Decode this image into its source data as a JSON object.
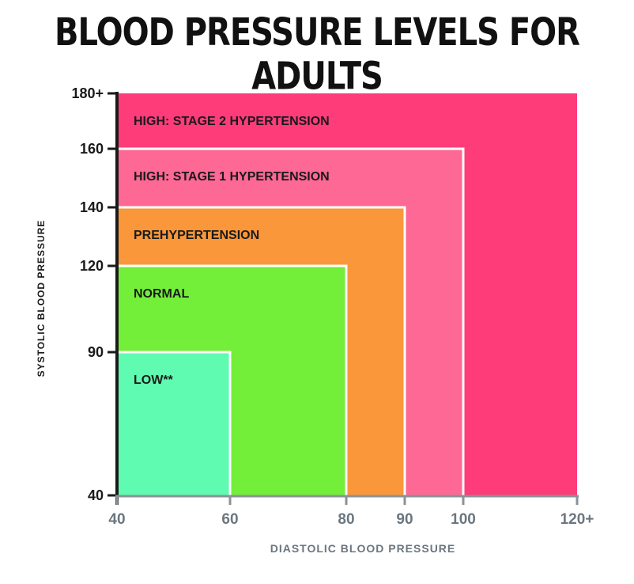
{
  "chart_data": {
    "type": "area",
    "title": "BLOOD PRESSURE LEVELS FOR ADULTS",
    "xlabel": "DIASTOLIC BLOOD PRESSURE",
    "ylabel": "SYSTOLIC BLOOD PRESSURE",
    "x_ticks": [
      {
        "value": 40,
        "label": "40"
      },
      {
        "value": 60,
        "label": "60"
      },
      {
        "value": 80,
        "label": "80"
      },
      {
        "value": 90,
        "label": "90"
      },
      {
        "value": 100,
        "label": "100"
      },
      {
        "value": 120,
        "label": "120+"
      }
    ],
    "y_ticks": [
      {
        "value": 40,
        "label": "40"
      },
      {
        "value": 90,
        "label": "90"
      },
      {
        "value": 120,
        "label": "120"
      },
      {
        "value": 140,
        "label": "140"
      },
      {
        "value": 160,
        "label": "160"
      },
      {
        "value": 180,
        "label": "180+"
      }
    ],
    "zones": [
      {
        "label": "HIGH: STAGE 2 HYPERTENSION",
        "diastolic_max": 120,
        "systolic_max": 180,
        "color": "#fe3c7a"
      },
      {
        "label": "HIGH: STAGE 1 HYPERTENSION",
        "diastolic_max": 100,
        "systolic_max": 160,
        "color": "#fd6895"
      },
      {
        "label": "PREHYPERTENSION",
        "diastolic_max": 90,
        "systolic_max": 140,
        "color": "#fa973a"
      },
      {
        "label": "NORMAL",
        "diastolic_max": 80,
        "systolic_max": 120,
        "color": "#73ee39"
      },
      {
        "label": "LOW**",
        "diastolic_max": 60,
        "systolic_max": 90,
        "color": "#5ffbb1"
      }
    ]
  }
}
